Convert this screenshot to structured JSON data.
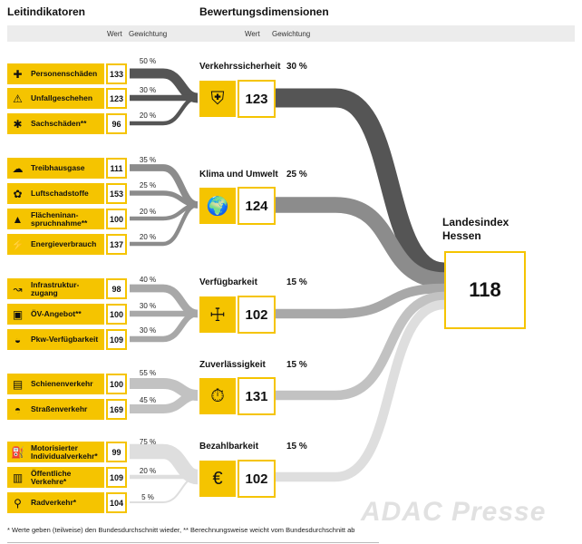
{
  "header": {
    "indicators_title": "Leitindikatoren",
    "dimensions_title": "Bewertungsdimensionen",
    "wert": "Wert",
    "gewichtung": "Gewichtung"
  },
  "colors": {
    "accent": "#f5c400",
    "flow_verkehrssicherheit": "#555555",
    "flow_klima": "#8c8c8c",
    "flow_verfuegbarkeit": "#a8a8a8",
    "flow_zuverlaessigkeit": "#c2c2c2",
    "flow_bezahlbarkeit": "#dedede"
  },
  "dimensions": [
    {
      "title": "Verkehrssicherheit",
      "weight": "30 %",
      "value": "123",
      "icon": "person-shield-icon",
      "indicators": [
        {
          "label": "Personenschäden",
          "value": "133",
          "weight": "50 %",
          "icon": "injury-icon"
        },
        {
          "label": "Unfallgeschehen",
          "value": "123",
          "weight": "30 %",
          "icon": "warning-icon"
        },
        {
          "label": "Sachschäden**",
          "value": "96",
          "weight": "20 %",
          "icon": "damage-icon"
        }
      ]
    },
    {
      "title": "Klima und Umwelt",
      "weight": "25 %",
      "value": "124",
      "icon": "globe-icon",
      "indicators": [
        {
          "label": "Treibhausgase",
          "value": "111",
          "weight": "35 %",
          "icon": "cloud-icon"
        },
        {
          "label": "Luftschadstoffe",
          "value": "153",
          "weight": "25 %",
          "icon": "pollutant-icon"
        },
        {
          "label": "Flächeninan-spruchnahme**",
          "value": "100",
          "weight": "20 %",
          "icon": "land-use-icon"
        },
        {
          "label": "Energieverbrauch",
          "value": "137",
          "weight": "20 %",
          "icon": "energy-icon"
        }
      ]
    },
    {
      "title": "Verfügbarkeit",
      "weight": "15 %",
      "value": "102",
      "icon": "person-arrows-icon",
      "indicators": [
        {
          "label": "Infrastruktur-zugang",
          "value": "98",
          "weight": "40 %",
          "icon": "route-icon"
        },
        {
          "label": "ÖV-Angebot**",
          "value": "100",
          "weight": "30 %",
          "icon": "bus-icon"
        },
        {
          "label": "Pkw-Verfügbarkeit",
          "value": "109",
          "weight": "30 %",
          "icon": "car-icon"
        }
      ]
    },
    {
      "title": "Zuverlässigkeit",
      "weight": "15 %",
      "value": "131",
      "icon": "stopwatch-icon",
      "indicators": [
        {
          "label": "Schienenverkehr",
          "value": "100",
          "weight": "55 %",
          "icon": "train-icon"
        },
        {
          "label": "Straßenverkehr",
          "value": "169",
          "weight": "45 %",
          "icon": "road-car-icon"
        }
      ]
    },
    {
      "title": "Bezahlbarkeit",
      "weight": "15 %",
      "value": "102",
      "icon": "euro-hand-icon",
      "indicators": [
        {
          "label": "Motorisierter Individualverkehr*",
          "value": "99",
          "weight": "75 %",
          "icon": "fuel-icon"
        },
        {
          "label": "Öffentliche Verkehre*",
          "value": "109",
          "weight": "20 %",
          "icon": "ticket-icon"
        },
        {
          "label": "Radverkehr*",
          "value": "104",
          "weight": "5 %",
          "icon": "bicycle-icon"
        }
      ]
    }
  ],
  "landesindex": {
    "title_line1": "Landesindex",
    "title_line2": "Hessen",
    "value": "118"
  },
  "footnote": "* Werte geben (teilweise) den Bundesdurchschnitt wieder, ** Berechnungsweise weicht vom Bundesdurchschnitt ab",
  "watermark": "ADAC Presse"
}
